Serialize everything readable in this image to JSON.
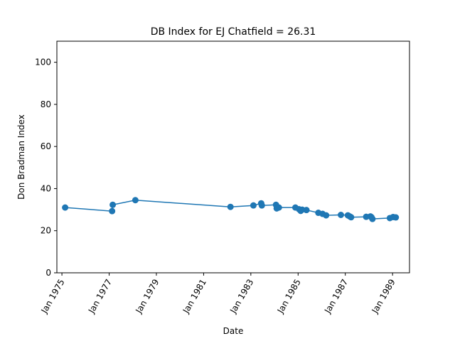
{
  "chart_data": {
    "type": "line",
    "title": "DB Index for EJ Chatfield = 26.31",
    "xlabel": "Date",
    "ylabel": "Don Bradman Index",
    "ylim": [
      0,
      110
    ],
    "yticks": [
      0,
      20,
      40,
      60,
      80,
      100
    ],
    "xlim": [
      "1974-10-15",
      "1989-09-20"
    ],
    "xticks": [
      {
        "date": "1975-01-01",
        "label": "Jan 1975"
      },
      {
        "date": "1977-01-01",
        "label": "Jan 1977"
      },
      {
        "date": "1979-01-01",
        "label": "Jan 1979"
      },
      {
        "date": "1981-01-01",
        "label": "Jan 1981"
      },
      {
        "date": "1983-01-01",
        "label": "Jan 1983"
      },
      {
        "date": "1985-01-01",
        "label": "Jan 1985"
      },
      {
        "date": "1987-01-01",
        "label": "Jan 1987"
      },
      {
        "date": "1989-01-01",
        "label": "Jan 1989"
      }
    ],
    "grid": false,
    "legend": "none",
    "color": "#1f77b4",
    "series": [
      {
        "points": [
          {
            "x": "1975-02-20",
            "y": 31.0
          },
          {
            "x": "1977-02-15",
            "y": 29.3
          },
          {
            "x": "1977-02-25",
            "y": 32.3
          },
          {
            "x": "1978-02-10",
            "y": 34.5
          },
          {
            "x": "1982-02-20",
            "y": 31.3
          },
          {
            "x": "1983-02-10",
            "y": 32.0
          },
          {
            "x": "1983-06-10",
            "y": 33.0
          },
          {
            "x": "1983-06-20",
            "y": 32.0
          },
          {
            "x": "1984-01-25",
            "y": 32.3
          },
          {
            "x": "1984-02-05",
            "y": 30.6
          },
          {
            "x": "1984-03-10",
            "y": 31.0
          },
          {
            "x": "1984-11-20",
            "y": 31.0
          },
          {
            "x": "1985-01-15",
            "y": 30.2
          },
          {
            "x": "1985-02-10",
            "y": 29.4
          },
          {
            "x": "1985-03-05",
            "y": 30.0
          },
          {
            "x": "1985-05-10",
            "y": 29.8
          },
          {
            "x": "1985-11-10",
            "y": 28.5
          },
          {
            "x": "1986-01-15",
            "y": 28.0
          },
          {
            "x": "1986-03-10",
            "y": 27.3
          },
          {
            "x": "1986-10-25",
            "y": 27.5
          },
          {
            "x": "1987-02-10",
            "y": 27.3
          },
          {
            "x": "1987-03-10",
            "y": 26.8
          },
          {
            "x": "1987-04-01",
            "y": 26.4
          },
          {
            "x": "1987-11-20",
            "y": 26.6
          },
          {
            "x": "1988-01-25",
            "y": 26.8
          },
          {
            "x": "1988-02-10",
            "y": 26.4
          },
          {
            "x": "1988-02-25",
            "y": 25.6
          },
          {
            "x": "1988-11-20",
            "y": 26.0
          },
          {
            "x": "1989-01-10",
            "y": 26.5
          },
          {
            "x": "1989-02-20",
            "y": 26.31
          }
        ]
      }
    ]
  }
}
